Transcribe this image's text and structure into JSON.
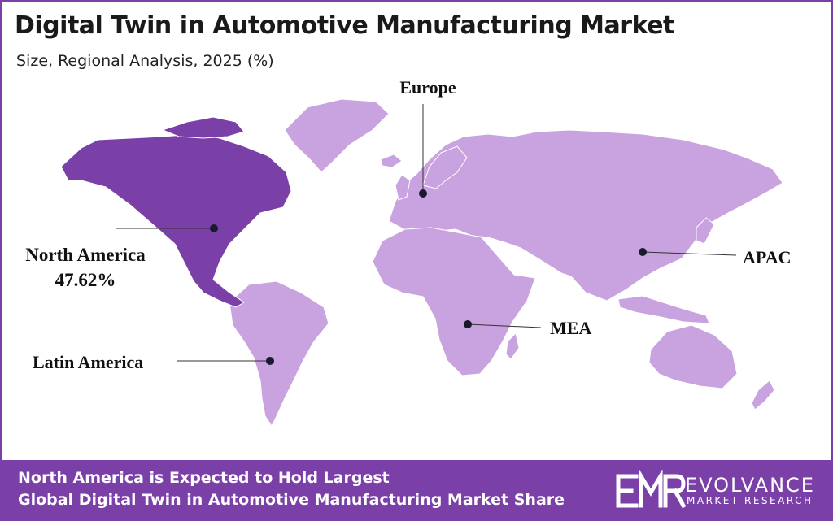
{
  "header": {
    "title": "Digital Twin in Automotive Manufacturing Market",
    "subtitle": "Size, Regional Analysis, 2025 (%)"
  },
  "map": {
    "regions": [
      {
        "id": "north-america",
        "label": "North America",
        "value": "47.62%",
        "highlighted": true
      },
      {
        "id": "europe",
        "label": "Europe",
        "highlighted": false
      },
      {
        "id": "apac",
        "label": "APAC",
        "highlighted": false
      },
      {
        "id": "mea",
        "label": "MEA",
        "highlighted": false
      },
      {
        "id": "latin-america",
        "label": "Latin America",
        "highlighted": false
      }
    ],
    "colors": {
      "highlight": "#7b3fa8",
      "base": "#c9a3e0",
      "frame": "#7b3fa8"
    }
  },
  "footer": {
    "line1": "North America is Expected to Hold Largest",
    "line2": "Global Digital Twin in Automotive Manufacturing Market Share",
    "logo_name": "EVOLVANCE",
    "logo_sub": "MARKET RESEARCH",
    "logo_icon": "emr-monogram-icon"
  }
}
